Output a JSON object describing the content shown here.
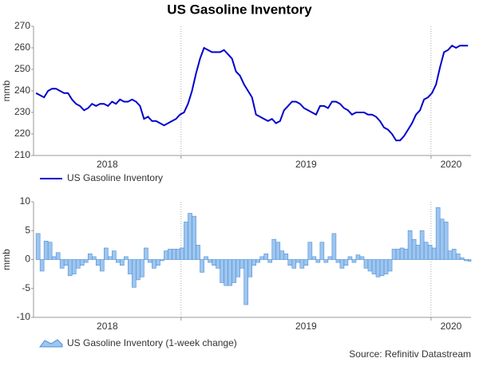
{
  "title": "US Gasoline Inventory",
  "source": "Source: Refinitiv Datastream",
  "chart_data": [
    {
      "type": "line",
      "ylabel": "mmb",
      "ylim": [
        210,
        270
      ],
      "yticks": [
        210,
        220,
        230,
        240,
        250,
        260,
        270
      ],
      "xlim": [
        2018.41,
        2020.16
      ],
      "xticks": [
        2018,
        2019,
        2020
      ],
      "grid": "x",
      "x": [
        2018.42,
        2018.436,
        2018.452,
        2018.468,
        2018.484,
        2018.5,
        2018.516,
        2018.532,
        2018.548,
        2018.564,
        2018.58,
        2018.596,
        2018.612,
        2018.628,
        2018.644,
        2018.66,
        2018.676,
        2018.692,
        2018.708,
        2018.724,
        2018.74,
        2018.756,
        2018.772,
        2018.788,
        2018.804,
        2018.82,
        2018.836,
        2018.852,
        2018.868,
        2018.884,
        2018.9,
        2018.916,
        2018.932,
        2018.948,
        2018.964,
        2018.98,
        2018.996,
        2019.012,
        2019.028,
        2019.044,
        2019.06,
        2019.076,
        2019.092,
        2019.108,
        2019.124,
        2019.14,
        2019.156,
        2019.172,
        2019.188,
        2019.204,
        2019.22,
        2019.236,
        2019.252,
        2019.268,
        2019.284,
        2019.3,
        2019.316,
        2019.332,
        2019.348,
        2019.364,
        2019.38,
        2019.396,
        2019.412,
        2019.428,
        2019.444,
        2019.46,
        2019.476,
        2019.492,
        2019.508,
        2019.524,
        2019.54,
        2019.556,
        2019.572,
        2019.588,
        2019.604,
        2019.62,
        2019.636,
        2019.652,
        2019.668,
        2019.684,
        2019.7,
        2019.716,
        2019.732,
        2019.748,
        2019.764,
        2019.78,
        2019.796,
        2019.812,
        2019.828,
        2019.844,
        2019.86,
        2019.876,
        2019.892,
        2019.908,
        2019.924,
        2019.94,
        2019.956,
        2019.972,
        2019.988,
        2020.004,
        2020.02,
        2020.036,
        2020.052,
        2020.068,
        2020.084,
        2020.1,
        2020.116,
        2020.132,
        2020.148
      ],
      "series": [
        {
          "name": "US Gasoline Inventory",
          "color": "#0000cc",
          "values": [
            239,
            238,
            237,
            240,
            241,
            241,
            240,
            239,
            239,
            236,
            234,
            233,
            231,
            232,
            234,
            233,
            234,
            234,
            233,
            235,
            234,
            236,
            235,
            235,
            236,
            235,
            233,
            227,
            228,
            226,
            226,
            225,
            224,
            225,
            226,
            227,
            229,
            230,
            234,
            240,
            248,
            255,
            260,
            259,
            258,
            258,
            258,
            259,
            257,
            255,
            249,
            247,
            243,
            240,
            237,
            229,
            228,
            227,
            226,
            227,
            225,
            226,
            231,
            233,
            235,
            235,
            234,
            232,
            231,
            230,
            229,
            233,
            233,
            232,
            235,
            235,
            234,
            232,
            231,
            229,
            230,
            230,
            230,
            229,
            229,
            228,
            226,
            223,
            222,
            220,
            217,
            217,
            219,
            222,
            225,
            229,
            231,
            236,
            237,
            239,
            243,
            251,
            258,
            259,
            261,
            260,
            261,
            261,
            261
          ]
        }
      ]
    },
    {
      "type": "area",
      "ylabel": "mmb",
      "ylim": [
        -10,
        10
      ],
      "yticks": [
        -10,
        -5,
        0,
        5,
        10
      ],
      "xlim": [
        2018.41,
        2020.16
      ],
      "xticks": [
        2018,
        2019,
        2020
      ],
      "grid": "x",
      "x": [
        2018.42,
        2018.436,
        2018.452,
        2018.468,
        2018.484,
        2018.5,
        2018.516,
        2018.532,
        2018.548,
        2018.564,
        2018.58,
        2018.596,
        2018.612,
        2018.628,
        2018.644,
        2018.66,
        2018.676,
        2018.692,
        2018.708,
        2018.724,
        2018.74,
        2018.756,
        2018.772,
        2018.788,
        2018.804,
        2018.82,
        2018.836,
        2018.852,
        2018.868,
        2018.884,
        2018.9,
        2018.916,
        2018.932,
        2018.948,
        2018.964,
        2018.98,
        2018.996,
        2019.012,
        2019.028,
        2019.044,
        2019.06,
        2019.076,
        2019.092,
        2019.108,
        2019.124,
        2019.14,
        2019.156,
        2019.172,
        2019.188,
        2019.204,
        2019.22,
        2019.236,
        2019.252,
        2019.268,
        2019.284,
        2019.3,
        2019.316,
        2019.332,
        2019.348,
        2019.364,
        2019.38,
        2019.396,
        2019.412,
        2019.428,
        2019.444,
        2019.46,
        2019.476,
        2019.492,
        2019.508,
        2019.524,
        2019.54,
        2019.556,
        2019.572,
        2019.588,
        2019.604,
        2019.62,
        2019.636,
        2019.652,
        2019.668,
        2019.684,
        2019.7,
        2019.716,
        2019.732,
        2019.748,
        2019.764,
        2019.78,
        2019.796,
        2019.812,
        2019.828,
        2019.844,
        2019.86,
        2019.876,
        2019.892,
        2019.908,
        2019.924,
        2019.94,
        2019.956,
        2019.972,
        2019.988,
        2020.004,
        2020.02,
        2020.036,
        2020.052,
        2020.068,
        2020.084,
        2020.1,
        2020.116,
        2020.132,
        2020.148
      ],
      "series": [
        {
          "name": "US Gasoline Inventory (1-week change)",
          "color": "#9ec5ee",
          "stroke": "#4a8fd8",
          "values": [
            4.5,
            -2,
            3.2,
            3,
            0.5,
            1.2,
            -1.5,
            -1,
            -2.8,
            -2.5,
            -1.5,
            -1,
            -0.5,
            1,
            0.5,
            -1,
            -2,
            2,
            0.5,
            1.5,
            -0.5,
            -1,
            0.5,
            -2.5,
            -4.8,
            -3.5,
            -3,
            2,
            -0.5,
            -1.5,
            -1,
            -0.2,
            1.5,
            1.8,
            1.8,
            1.8,
            2,
            6.5,
            8,
            7.5,
            2.5,
            -2.2,
            0.5,
            -0.5,
            -1,
            -1.5,
            -4,
            -4.5,
            -4.5,
            -4,
            -3,
            -1.5,
            -7.8,
            -3,
            -1,
            -0.5,
            0.5,
            1,
            -0.5,
            3.5,
            3,
            1.5,
            1,
            -1,
            -1.5,
            -0.5,
            -1.5,
            -1,
            3,
            0.5,
            -0.5,
            3,
            -0.5,
            0.5,
            4.5,
            -0.5,
            -1.5,
            -1,
            0.5,
            -0.5,
            0.8,
            0.5,
            -1.5,
            -2,
            -2.5,
            -3,
            -2.8,
            -2.5,
            -2,
            1.8,
            1.8,
            2,
            1.8,
            5,
            3.5,
            2.5,
            5,
            3,
            2.5,
            2,
            9,
            7,
            6.5,
            1.5,
            1.8,
            1,
            0.3,
            -0.2,
            -0.3
          ]
        }
      ]
    }
  ]
}
